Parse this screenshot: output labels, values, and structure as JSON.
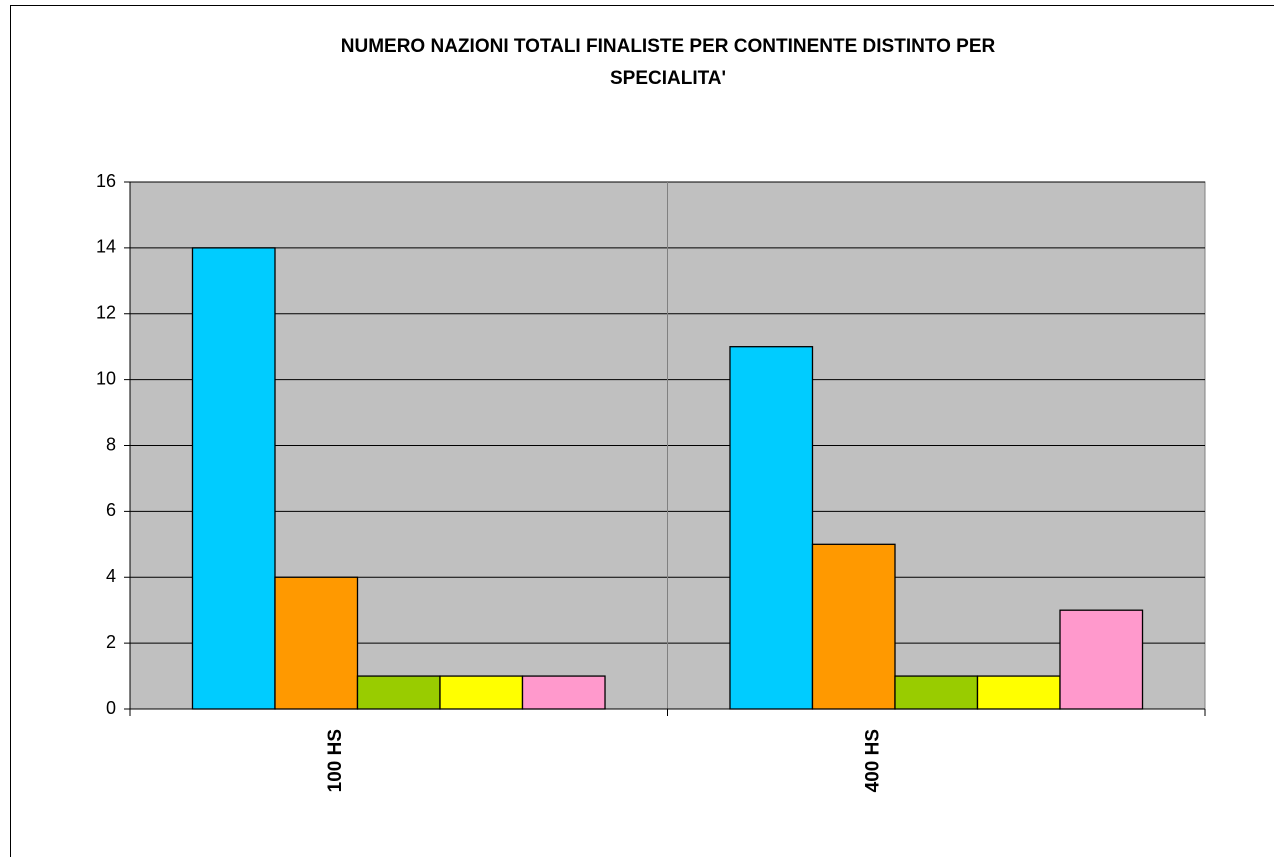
{
  "chart_data": {
    "type": "bar",
    "title": [
      "NUMERO NAZIONI TOTALI FINALISTE PER CONTINENTE DISTINTO PER",
      "SPECIALITA'"
    ],
    "categories": [
      "100 HS",
      "400 HS"
    ],
    "series": [
      {
        "color": "#00ccff",
        "values": [
          14,
          11
        ]
      },
      {
        "color": "#ff9900",
        "values": [
          4,
          5
        ]
      },
      {
        "color": "#99cc00",
        "values": [
          1,
          1
        ]
      },
      {
        "color": "#ffff00",
        "values": [
          1,
          1
        ]
      },
      {
        "color": "#ff99cc",
        "values": [
          1,
          3
        ]
      }
    ],
    "ylim": [
      0,
      16
    ],
    "yticks": [
      0,
      2,
      4,
      6,
      8,
      10,
      12,
      14,
      16
    ],
    "grid": true,
    "plot_background": "#c0c0c0"
  }
}
